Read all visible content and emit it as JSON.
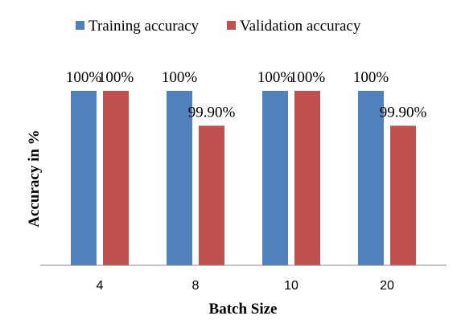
{
  "chart_data": {
    "type": "bar",
    "title": "",
    "xlabel": "Batch Size",
    "ylabel": "Accuracy in %",
    "categories": [
      "4",
      "8",
      "10",
      "20"
    ],
    "series": [
      {
        "name": "Training accuracy",
        "color": "#4F81BD",
        "values": [
          100,
          100,
          100,
          100
        ],
        "labels": [
          "100%",
          "100%",
          "100%",
          "100%"
        ]
      },
      {
        "name": "Validation accuracy",
        "color": "#C0504D",
        "values": [
          100,
          99.9,
          100,
          99.9
        ],
        "labels": [
          "100%",
          "99.90%",
          "100%",
          "99.90%"
        ]
      }
    ],
    "ylim": [
      99.5,
      100
    ],
    "grid": false,
    "legend_position": "top"
  }
}
